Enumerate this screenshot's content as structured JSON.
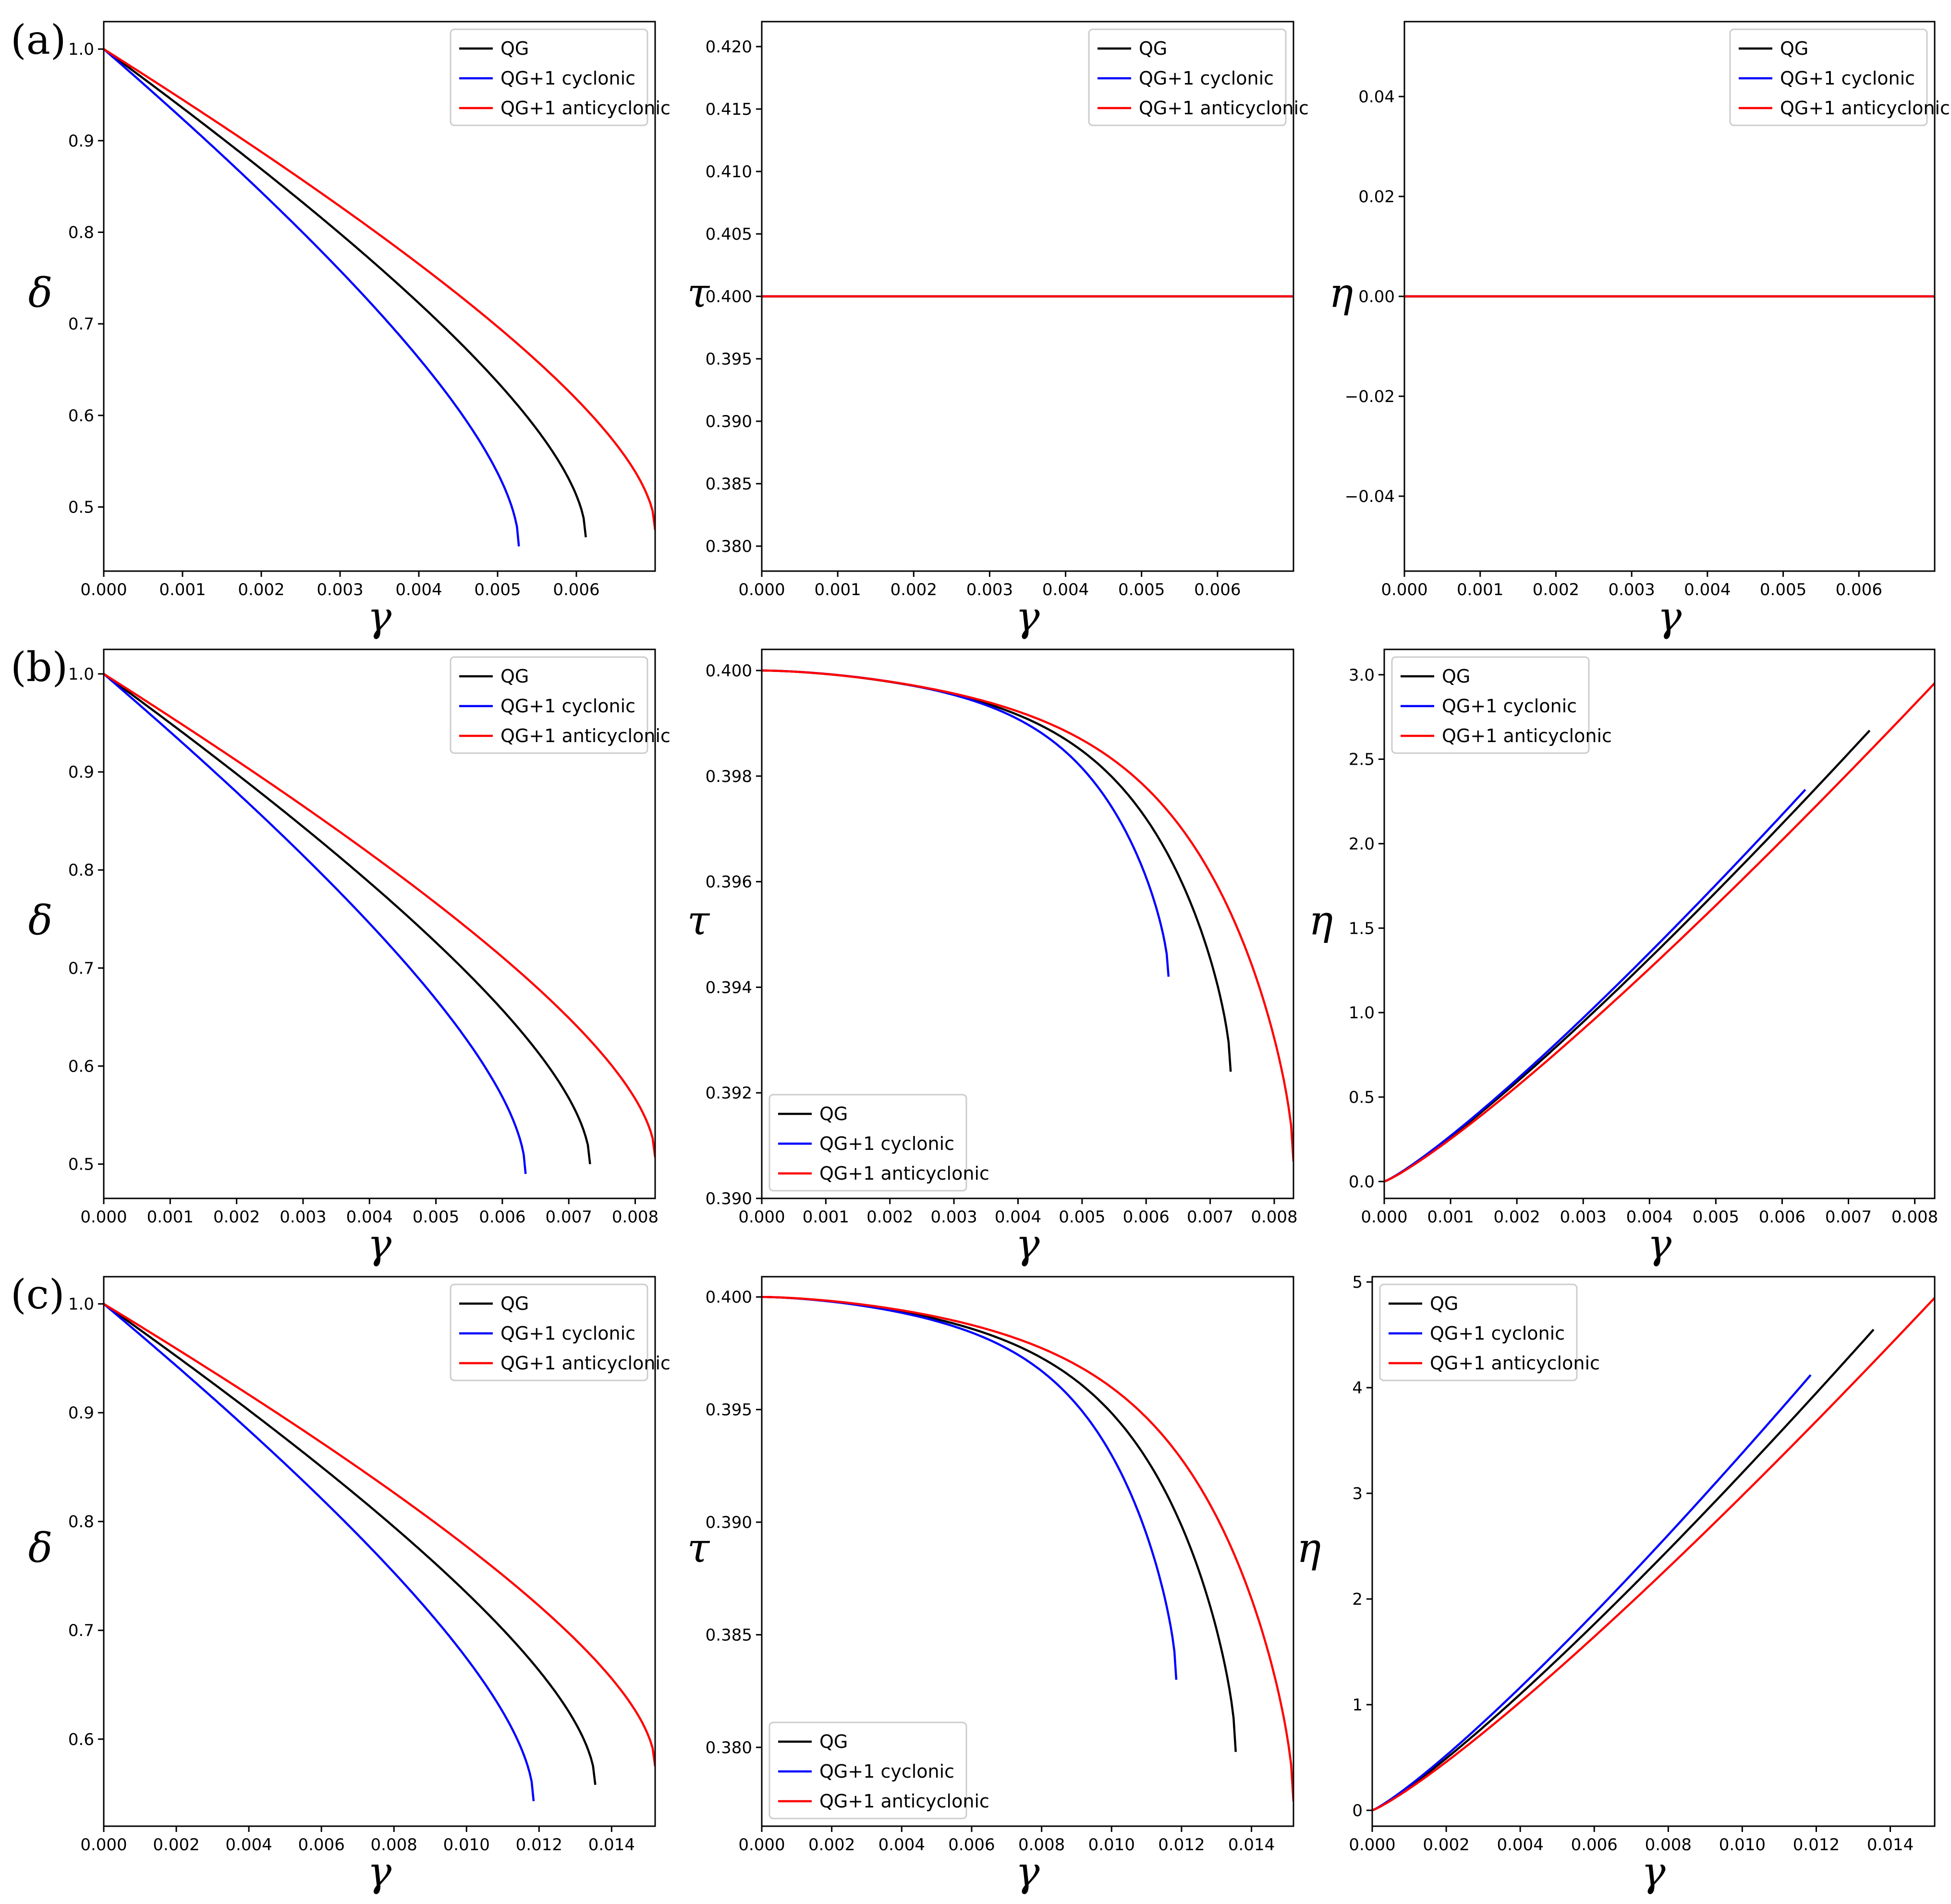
{
  "figure": {
    "row_labels": [
      "(a)",
      "(b)",
      "(c)"
    ],
    "colors": {
      "QG": "#000000",
      "QG+1 cyclonic": "#0000ff",
      "QG+1 anticyclonic": "#ff0000"
    }
  },
  "chart_data": [
    {
      "type": "line",
      "row": 0,
      "col": 0,
      "xlabel": "γ",
      "ylabel": "δ",
      "xlim": [
        0,
        0.007
      ],
      "ylim": [
        0.43,
        1.03
      ],
      "xticks": [
        0,
        0.001,
        0.002,
        0.003,
        0.004,
        0.005,
        0.006
      ],
      "xtick_labels": [
        "0.000",
        "0.001",
        "0.002",
        "0.003",
        "0.004",
        "0.005",
        "0.006"
      ],
      "yticks": [
        0.5,
        0.6,
        0.7,
        0.8,
        0.9,
        1.0
      ],
      "ytick_labels": [
        "0.5",
        "0.6",
        "0.7",
        "0.8",
        "0.9",
        "1.0"
      ],
      "legend": {
        "position": "top-right",
        "entries": [
          "QG",
          "QG+1 cyclonic",
          "QG+1 anticyclonic"
        ]
      },
      "series": [
        {
          "name": "QG",
          "color": "#000000",
          "curve": "delta",
          "x": [
            0,
            0.00612
          ],
          "y": [
            1.0,
            0.467
          ]
        },
        {
          "name": "QG+1 cyclonic",
          "color": "#0000ff",
          "curve": "delta",
          "x": [
            0,
            0.00527
          ],
          "y": [
            1.0,
            0.457
          ]
        },
        {
          "name": "QG+1 anticyclonic",
          "color": "#ff0000",
          "curve": "delta",
          "x": [
            0,
            0.007
          ],
          "y": [
            1.0,
            0.475
          ]
        }
      ]
    },
    {
      "type": "line",
      "row": 0,
      "col": 1,
      "xlabel": "γ",
      "ylabel": "τ",
      "xlim": [
        0,
        0.007
      ],
      "ylim": [
        0.378,
        0.422
      ],
      "xticks": [
        0,
        0.001,
        0.002,
        0.003,
        0.004,
        0.005,
        0.006
      ],
      "xtick_labels": [
        "0.000",
        "0.001",
        "0.002",
        "0.003",
        "0.004",
        "0.005",
        "0.006"
      ],
      "yticks": [
        0.38,
        0.385,
        0.39,
        0.395,
        0.4,
        0.405,
        0.41,
        0.415,
        0.42
      ],
      "ytick_labels": [
        "0.380",
        "0.385",
        "0.390",
        "0.395",
        "0.400",
        "0.405",
        "0.410",
        "0.415",
        "0.420"
      ],
      "legend": {
        "position": "top-right",
        "entries": [
          "QG",
          "QG+1 cyclonic",
          "QG+1 anticyclonic"
        ]
      },
      "series": [
        {
          "name": "QG",
          "color": "#000000",
          "curve": "linear",
          "x": [
            0,
            0.007
          ],
          "y": [
            0.4,
            0.4
          ]
        },
        {
          "name": "QG+1 cyclonic",
          "color": "#0000ff",
          "curve": "linear",
          "x": [
            0,
            0.007
          ],
          "y": [
            0.4,
            0.4
          ]
        },
        {
          "name": "QG+1 anticyclonic",
          "color": "#ff0000",
          "curve": "linear",
          "x": [
            0,
            0.007
          ],
          "y": [
            0.4,
            0.4
          ]
        }
      ]
    },
    {
      "type": "line",
      "row": 0,
      "col": 2,
      "xlabel": "γ",
      "ylabel": "η",
      "xlim": [
        0,
        0.007
      ],
      "ylim": [
        -0.055,
        0.055
      ],
      "xticks": [
        0,
        0.001,
        0.002,
        0.003,
        0.004,
        0.005,
        0.006
      ],
      "xtick_labels": [
        "0.000",
        "0.001",
        "0.002",
        "0.003",
        "0.004",
        "0.005",
        "0.006"
      ],
      "yticks": [
        -0.04,
        -0.02,
        0.0,
        0.02,
        0.04
      ],
      "ytick_labels": [
        "−0.04",
        "−0.02",
        "0.00",
        "0.02",
        "0.04"
      ],
      "legend": {
        "position": "top-right",
        "entries": [
          "QG",
          "QG+1 cyclonic",
          "QG+1 anticyclonic"
        ]
      },
      "series": [
        {
          "name": "QG",
          "color": "#000000",
          "curve": "linear",
          "x": [
            0,
            0.007
          ],
          "y": [
            0,
            0
          ]
        },
        {
          "name": "QG+1 cyclonic",
          "color": "#0000ff",
          "curve": "linear",
          "x": [
            0,
            0.007
          ],
          "y": [
            0,
            0
          ]
        },
        {
          "name": "QG+1 anticyclonic",
          "color": "#ff0000",
          "curve": "linear",
          "x": [
            0,
            0.007
          ],
          "y": [
            0,
            0
          ]
        }
      ]
    },
    {
      "type": "line",
      "row": 1,
      "col": 0,
      "xlabel": "γ",
      "ylabel": "δ",
      "xlim": [
        0,
        0.0083
      ],
      "ylim": [
        0.465,
        1.025
      ],
      "xticks": [
        0,
        0.001,
        0.002,
        0.003,
        0.004,
        0.005,
        0.006,
        0.007,
        0.008
      ],
      "xtick_labels": [
        "0.000",
        "0.001",
        "0.002",
        "0.003",
        "0.004",
        "0.005",
        "0.006",
        "0.007",
        "0.008"
      ],
      "yticks": [
        0.5,
        0.6,
        0.7,
        0.8,
        0.9,
        1.0
      ],
      "ytick_labels": [
        "0.5",
        "0.6",
        "0.7",
        "0.8",
        "0.9",
        "1.0"
      ],
      "legend": {
        "position": "top-right",
        "entries": [
          "QG",
          "QG+1 cyclonic",
          "QG+1 anticyclonic"
        ]
      },
      "series": [
        {
          "name": "QG",
          "color": "#000000",
          "curve": "delta",
          "x": [
            0,
            0.00732
          ],
          "y": [
            1.0,
            0.5
          ]
        },
        {
          "name": "QG+1 cyclonic",
          "color": "#0000ff",
          "curve": "delta",
          "x": [
            0,
            0.00635
          ],
          "y": [
            1.0,
            0.49
          ]
        },
        {
          "name": "QG+1 anticyclonic",
          "color": "#ff0000",
          "curve": "delta",
          "x": [
            0,
            0.0083
          ],
          "y": [
            1.0,
            0.507
          ]
        }
      ]
    },
    {
      "type": "line",
      "row": 1,
      "col": 1,
      "xlabel": "γ",
      "ylabel": "τ",
      "xlim": [
        0,
        0.0083
      ],
      "ylim": [
        0.39,
        0.4004
      ],
      "xticks": [
        0,
        0.001,
        0.002,
        0.003,
        0.004,
        0.005,
        0.006,
        0.007,
        0.008
      ],
      "xtick_labels": [
        "0.000",
        "0.001",
        "0.002",
        "0.003",
        "0.004",
        "0.005",
        "0.006",
        "0.007",
        "0.008"
      ],
      "yticks": [
        0.39,
        0.392,
        0.394,
        0.396,
        0.398,
        0.4
      ],
      "ytick_labels": [
        "0.390",
        "0.392",
        "0.394",
        "0.396",
        "0.398",
        "0.400"
      ],
      "legend": {
        "position": "bottom-left",
        "entries": [
          "QG",
          "QG+1 cyclonic",
          "QG+1 anticyclonic"
        ]
      },
      "series": [
        {
          "name": "QG",
          "color": "#000000",
          "curve": "tau",
          "x": [
            0,
            0.00732
          ],
          "y": [
            0.4,
            0.3924
          ]
        },
        {
          "name": "QG+1 cyclonic",
          "color": "#0000ff",
          "curve": "tau",
          "x": [
            0,
            0.00635
          ],
          "y": [
            0.4,
            0.3942
          ]
        },
        {
          "name": "QG+1 anticyclonic",
          "color": "#ff0000",
          "curve": "tau",
          "x": [
            0,
            0.0083
          ],
          "y": [
            0.4,
            0.3907
          ]
        }
      ]
    },
    {
      "type": "line",
      "row": 1,
      "col": 2,
      "xlabel": "γ",
      "ylabel": "η",
      "xlim": [
        0,
        0.0083
      ],
      "ylim": [
        -0.1,
        3.15
      ],
      "xticks": [
        0,
        0.001,
        0.002,
        0.003,
        0.004,
        0.005,
        0.006,
        0.007,
        0.008
      ],
      "xtick_labels": [
        "0.000",
        "0.001",
        "0.002",
        "0.003",
        "0.004",
        "0.005",
        "0.006",
        "0.007",
        "0.008"
      ],
      "yticks": [
        0.0,
        0.5,
        1.0,
        1.5,
        2.0,
        2.5,
        3.0
      ],
      "ytick_labels": [
        "0.0",
        "0.5",
        "1.0",
        "1.5",
        "2.0",
        "2.5",
        "3.0"
      ],
      "legend": {
        "position": "top-left",
        "entries": [
          "QG",
          "QG+1 cyclonic",
          "QG+1 anticyclonic"
        ]
      },
      "series": [
        {
          "name": "QG",
          "color": "#000000",
          "curve": "eta",
          "x": [
            0,
            0.00732
          ],
          "y": [
            0,
            2.67
          ]
        },
        {
          "name": "QG+1 cyclonic",
          "color": "#0000ff",
          "curve": "eta",
          "x": [
            0,
            0.00635
          ],
          "y": [
            0,
            2.32
          ]
        },
        {
          "name": "QG+1 anticyclonic",
          "color": "#ff0000",
          "curve": "eta",
          "x": [
            0,
            0.0083
          ],
          "y": [
            0,
            2.95
          ]
        }
      ]
    },
    {
      "type": "line",
      "row": 2,
      "col": 0,
      "xlabel": "γ",
      "ylabel": "δ",
      "xlim": [
        0,
        0.0152
      ],
      "ylim": [
        0.52,
        1.025
      ],
      "xticks": [
        0,
        0.002,
        0.004,
        0.006,
        0.008,
        0.01,
        0.012,
        0.014
      ],
      "xtick_labels": [
        "0.000",
        "0.002",
        "0.004",
        "0.006",
        "0.008",
        "0.010",
        "0.012",
        "0.014"
      ],
      "yticks": [
        0.6,
        0.7,
        0.8,
        0.9,
        1.0
      ],
      "ytick_labels": [
        "0.6",
        "0.7",
        "0.8",
        "0.9",
        "1.0"
      ],
      "legend": {
        "position": "top-right",
        "entries": [
          "QG",
          "QG+1 cyclonic",
          "QG+1 anticyclonic"
        ]
      },
      "series": [
        {
          "name": "QG",
          "color": "#000000",
          "curve": "delta",
          "x": [
            0,
            0.01355
          ],
          "y": [
            1.0,
            0.558
          ]
        },
        {
          "name": "QG+1 cyclonic",
          "color": "#0000ff",
          "curve": "delta",
          "x": [
            0,
            0.01185
          ],
          "y": [
            1.0,
            0.543
          ]
        },
        {
          "name": "QG+1 anticyclonic",
          "color": "#ff0000",
          "curve": "delta",
          "x": [
            0,
            0.0152
          ],
          "y": [
            1.0,
            0.575
          ]
        }
      ]
    },
    {
      "type": "line",
      "row": 2,
      "col": 1,
      "xlabel": "γ",
      "ylabel": "τ",
      "xlim": [
        0,
        0.0152
      ],
      "ylim": [
        0.3765,
        0.4009
      ],
      "xticks": [
        0,
        0.002,
        0.004,
        0.006,
        0.008,
        0.01,
        0.012,
        0.014
      ],
      "xtick_labels": [
        "0.000",
        "0.002",
        "0.004",
        "0.006",
        "0.008",
        "0.010",
        "0.012",
        "0.014"
      ],
      "yticks": [
        0.38,
        0.385,
        0.39,
        0.395,
        0.4
      ],
      "ytick_labels": [
        "0.380",
        "0.385",
        "0.390",
        "0.395",
        "0.400"
      ],
      "legend": {
        "position": "bottom-left",
        "entries": [
          "QG",
          "QG+1 cyclonic",
          "QG+1 anticyclonic"
        ]
      },
      "series": [
        {
          "name": "QG",
          "color": "#000000",
          "curve": "tau",
          "x": [
            0,
            0.01355
          ],
          "y": [
            0.4,
            0.3798
          ]
        },
        {
          "name": "QG+1 cyclonic",
          "color": "#0000ff",
          "curve": "tau",
          "x": [
            0,
            0.01185
          ],
          "y": [
            0.4,
            0.383
          ]
        },
        {
          "name": "QG+1 anticyclonic",
          "color": "#ff0000",
          "curve": "tau",
          "x": [
            0,
            0.0152
          ],
          "y": [
            0.4,
            0.3776
          ]
        }
      ]
    },
    {
      "type": "line",
      "row": 2,
      "col": 2,
      "xlabel": "γ",
      "ylabel": "η",
      "xlim": [
        0,
        0.0152
      ],
      "ylim": [
        -0.15,
        5.05
      ],
      "xticks": [
        0,
        0.002,
        0.004,
        0.006,
        0.008,
        0.01,
        0.012,
        0.014
      ],
      "xtick_labels": [
        "0.000",
        "0.002",
        "0.004",
        "0.006",
        "0.008",
        "0.010",
        "0.012",
        "0.014"
      ],
      "yticks": [
        0,
        1,
        2,
        3,
        4,
        5
      ],
      "ytick_labels": [
        "0",
        "1",
        "2",
        "3",
        "4",
        "5"
      ],
      "legend": {
        "position": "top-left",
        "entries": [
          "QG",
          "QG+1 cyclonic",
          "QG+1 anticyclonic"
        ]
      },
      "series": [
        {
          "name": "QG",
          "color": "#000000",
          "curve": "eta",
          "x": [
            0,
            0.01355
          ],
          "y": [
            0,
            4.55
          ]
        },
        {
          "name": "QG+1 cyclonic",
          "color": "#0000ff",
          "curve": "eta",
          "x": [
            0,
            0.01185
          ],
          "y": [
            0,
            4.12
          ]
        },
        {
          "name": "QG+1 anticyclonic",
          "color": "#ff0000",
          "curve": "eta",
          "x": [
            0,
            0.0152
          ],
          "y": [
            0,
            4.85
          ]
        }
      ]
    }
  ]
}
